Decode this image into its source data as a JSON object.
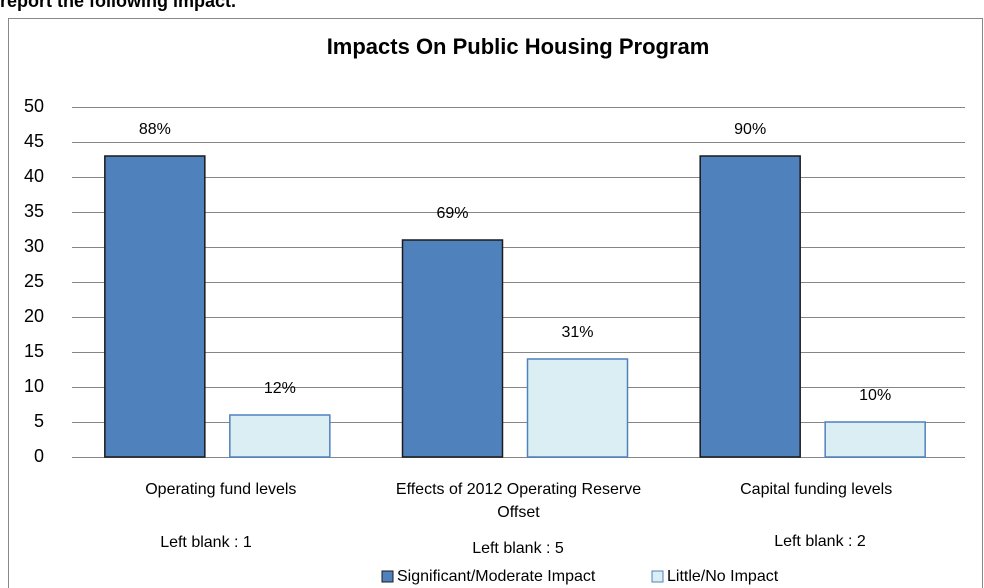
{
  "page_heading": "report the following impact.",
  "chart_data": {
    "type": "bar",
    "title": "Impacts On Public Housing Program",
    "categories": [
      "Operating fund levels",
      "Effects of 2012 Operating Reserve Offset",
      "Capital funding levels"
    ],
    "series": [
      {
        "name": "Significant/Moderate Impact",
        "color": "#4f81bd",
        "values": [
          43,
          31,
          43
        ],
        "labels": [
          "88%",
          "69%",
          "90%"
        ]
      },
      {
        "name": "Little/No Impact",
        "color": "#dbeef4",
        "values": [
          6,
          14,
          5
        ],
        "labels": [
          "12%",
          "31%",
          "10%"
        ]
      }
    ],
    "annotations": [
      "Left blank : 1",
      "Left blank : 5",
      "Left blank : 2"
    ],
    "ylim": [
      0,
      50
    ],
    "yticks": [
      0,
      5,
      10,
      15,
      20,
      25,
      30,
      35,
      40,
      45,
      50
    ],
    "grid": true,
    "legend": "bottom"
  }
}
